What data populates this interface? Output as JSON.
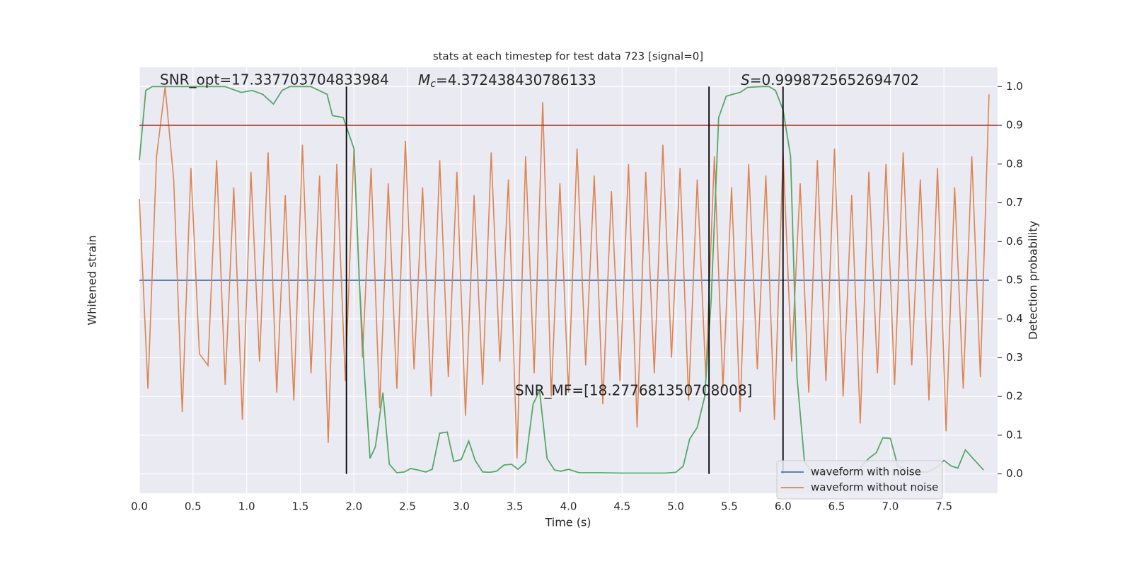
{
  "chart_data": {
    "type": "line",
    "title": "stats at each timestep for test data 723 [signal=0]",
    "xlabel": "Time (s)",
    "ylabel": "Whitened strain",
    "y2label": "Detection probability",
    "xlim": [
      0,
      8
    ],
    "ylim": [
      -5.5,
      5.5
    ],
    "y2lim": [
      -0.05,
      1.05
    ],
    "xticks": [
      {
        "value": 0,
        "label": "0.0"
      },
      0.5,
      {
        "value": 1,
        "label": "1.0"
      },
      1.5,
      {
        "value": 2,
        "label": "2.0"
      },
      2.5,
      {
        "value": 3,
        "label": "3.0"
      },
      3.5,
      {
        "value": 4,
        "label": "4.0"
      },
      4.5,
      {
        "value": 5,
        "label": "5.0"
      },
      5.5,
      {
        "value": 6,
        "label": "6.0"
      },
      6.5,
      {
        "value": 7,
        "label": "7.0"
      },
      7.5
    ],
    "y2ticks": [
      {
        "value": 0,
        "label": "0.0"
      },
      0.1,
      0.2,
      0.3,
      0.4,
      0.5,
      0.6,
      0.7,
      0.8,
      0.9,
      {
        "value": 1,
        "label": "1.0"
      }
    ],
    "grid": true,
    "legend": "lower right",
    "series": [
      {
        "name": "waveform with noise",
        "color": "#4c72b0",
        "x": [
          0,
          7.92
        ],
        "values": [
          0,
          0
        ]
      },
      {
        "name": "waveform without noise",
        "color": "#dd8452",
        "x": [
          0,
          0.08,
          0.16,
          0.24,
          0.32,
          0.4,
          0.48,
          0.56,
          0.64,
          0.72,
          0.8,
          0.88,
          0.96,
          1.04,
          1.12,
          1.2,
          1.28,
          1.36,
          1.44,
          1.52,
          1.6,
          1.68,
          1.76,
          1.84,
          1.92,
          2,
          2.08,
          2.16,
          2.24,
          2.32,
          2.4,
          2.48,
          2.56,
          2.64,
          2.72,
          2.8,
          2.88,
          2.96,
          3.04,
          3.12,
          3.2,
          3.28,
          3.36,
          3.44,
          3.52,
          3.6,
          3.68,
          3.76,
          3.84,
          3.92,
          4,
          4.08,
          4.16,
          4.24,
          4.32,
          4.4,
          4.48,
          4.56,
          4.64,
          4.72,
          4.8,
          4.88,
          4.96,
          5.04,
          5.12,
          5.2,
          5.28,
          5.36,
          5.44,
          5.52,
          5.6,
          5.68,
          5.76,
          5.84,
          5.92,
          6,
          6.08,
          6.16,
          6.24,
          6.32,
          6.4,
          6.48,
          6.56,
          6.64,
          6.72,
          6.8,
          6.88,
          6.96,
          7.04,
          7.12,
          7.2,
          7.28,
          7.36,
          7.44,
          7.52,
          7.6,
          7.68,
          7.76,
          7.84,
          7.92
        ],
        "values": [
          2.1,
          -2.8,
          3.2,
          5.0,
          2.6,
          -3.4,
          2.9,
          -1.9,
          -2.2,
          3.1,
          -2.7,
          2.4,
          -3.6,
          2.8,
          -2.1,
          3.3,
          -2.9,
          2.2,
          -3.1,
          3.5,
          -2.4,
          2.7,
          -4.2,
          3.0,
          -2.6,
          3.4,
          -2.0,
          2.9,
          -3.3,
          2.5,
          -2.8,
          3.6,
          -2.3,
          2.4,
          -3.0,
          3.1,
          -2.5,
          2.8,
          -3.5,
          2.2,
          -2.7,
          3.3,
          -2.1,
          2.6,
          -4.6,
          3.2,
          -2.4,
          4.6,
          -3.0,
          2.5,
          -2.9,
          3.4,
          -2.2,
          2.7,
          -3.2,
          2.3,
          -2.6,
          3.0,
          -3.8,
          2.8,
          -2.4,
          3.5,
          -2.0,
          2.9,
          -3.1,
          2.6,
          -2.5,
          3.2,
          -2.8,
          2.4,
          -3.4,
          3.0,
          -2.3,
          2.7,
          -3.6,
          3.3,
          -2.1,
          2.5,
          -2.9,
          3.1,
          -2.6,
          3.4,
          -3.0,
          2.2,
          -3.7,
          2.8,
          -2.4,
          3.0,
          -2.7,
          3.3,
          -2.2,
          2.6,
          -3.1,
          2.9,
          -3.9,
          2.4,
          -2.8,
          3.2,
          -2.5,
          4.8
        ]
      },
      {
        "color": "#55a868",
        "axis": "y2",
        "x": [
          0,
          0.06,
          0.12,
          0.5,
          0.8,
          0.95,
          1.05,
          1.15,
          1.25,
          1.33,
          1.4,
          1.6,
          1.75,
          1.8,
          1.9,
          2.0,
          2.05,
          2.1,
          2.15,
          2.2,
          2.27,
          2.33,
          2.4,
          2.47,
          2.53,
          2.6,
          2.67,
          2.73,
          2.8,
          2.87,
          2.93,
          3.0,
          3.07,
          3.13,
          3.2,
          3.27,
          3.33,
          3.4,
          3.47,
          3.53,
          3.6,
          3.67,
          3.73,
          3.8,
          3.87,
          3.93,
          4.0,
          4.1,
          4.3,
          4.5,
          4.7,
          4.9,
          5.0,
          5.07,
          5.13,
          5.2,
          5.27,
          5.33,
          5.4,
          5.47,
          5.53,
          5.6,
          5.67,
          5.8,
          5.87,
          5.93,
          6.0,
          6.07,
          6.13,
          6.2,
          6.27,
          6.5,
          6.7,
          6.8,
          6.87,
          6.93,
          7.0,
          7.07,
          7.2,
          7.35,
          7.45,
          7.5,
          7.57,
          7.63,
          7.7,
          7.77,
          7.87
        ],
        "values": [
          0.81,
          0.99,
          1.0,
          1.0,
          1.0,
          0.985,
          0.99,
          0.98,
          0.955,
          0.99,
          1.0,
          1.0,
          0.98,
          0.925,
          0.92,
          0.84,
          0.5,
          0.25,
          0.04,
          0.07,
          0.21,
          0.025,
          0.003,
          0.005,
          0.014,
          0.01,
          0.005,
          0.012,
          0.105,
          0.108,
          0.032,
          0.037,
          0.085,
          0.035,
          0.005,
          0.004,
          0.007,
          0.023,
          0.025,
          0.012,
          0.03,
          0.18,
          0.215,
          0.04,
          0.01,
          0.007,
          0.012,
          0.003,
          0.003,
          0.002,
          0.002,
          0.002,
          0.004,
          0.02,
          0.09,
          0.12,
          0.2,
          0.45,
          0.92,
          0.975,
          0.98,
          0.985,
          0.998,
          1.0,
          1.0,
          0.99,
          0.94,
          0.82,
          0.25,
          0.03,
          0.005,
          0.003,
          0.01,
          0.04,
          0.055,
          0.093,
          0.092,
          0.02,
          0.005,
          0.005,
          0.02,
          0.035,
          0.02,
          0.015,
          0.062,
          0.04,
          0.01
        ]
      }
    ],
    "vlines": [
      1.93,
      5.31,
      6.0
    ],
    "vline_color": "#000000",
    "hline": {
      "value": 0.9,
      "color": "#b03a2e",
      "axis": "y2"
    },
    "annotations": [
      {
        "text": "SNR_opt=17.337703704833984"
      },
      {
        "symbol": "M",
        "subscript": "c",
        "text": "=4.372438430786133"
      },
      {
        "symbol": "S",
        "text": "=0.9998725652694702"
      },
      {
        "text": "SNR_MF=[18.277681350708008]"
      }
    ]
  }
}
